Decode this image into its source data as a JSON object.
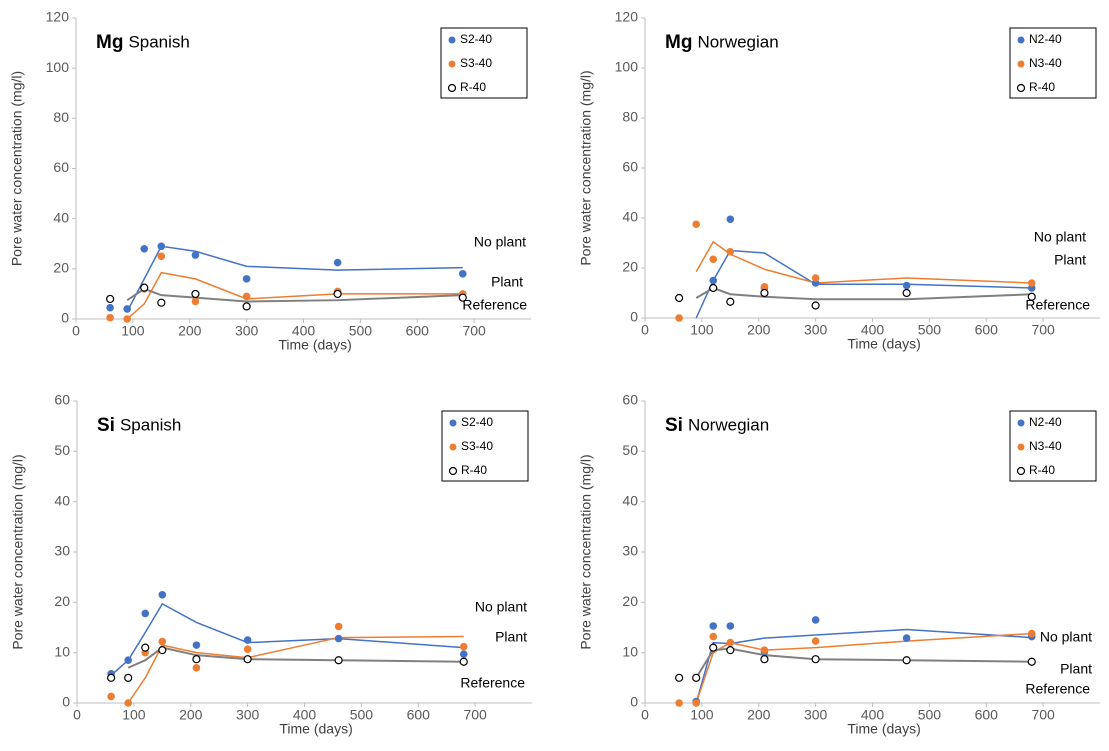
{
  "chart_data": [
    {
      "type": "scatter",
      "title_bold": "Mg",
      "title": "Spanish",
      "x_label": "Time (days)",
      "y_label": "Pore water concentration (mg/l)",
      "xlim": [
        0,
        800
      ],
      "xticks": [
        0,
        100,
        200,
        300,
        400,
        500,
        600,
        700
      ],
      "ylim": [
        0,
        120
      ],
      "yticks": [
        0,
        20,
        40,
        60,
        80,
        100,
        120
      ],
      "x": [
        60,
        90,
        120,
        150,
        210,
        300,
        460,
        680
      ],
      "series": [
        {
          "name": "S2-40",
          "color": "#4472c4",
          "marker": "filled",
          "values": [
            4.5,
            4,
            28,
            29,
            25.5,
            16,
            22.5,
            18
          ]
        },
        {
          "name": "S3-40",
          "color": "#ed7d31",
          "marker": "filled",
          "values": [
            0.5,
            0,
            12,
            25,
            7,
            9,
            11,
            10
          ]
        },
        {
          "name": "R-40",
          "color": "#000000",
          "marker": "open",
          "values": [
            8,
            null,
            12.5,
            6.5,
            10,
            5,
            10,
            8.5
          ]
        }
      ],
      "trend_x": [
        90,
        120,
        150,
        210,
        300,
        460,
        680
      ],
      "trend_lines": [
        {
          "label": "No plant",
          "color": "#4472c4",
          "values": [
            3,
            16,
            29,
            27,
            21,
            19.5,
            20.5
          ]
        },
        {
          "label": "Plant",
          "color": "#ed7d31",
          "values": [
            0,
            6,
            18.5,
            16,
            8,
            10,
            10
          ]
        },
        {
          "label": "Reference",
          "color": "#808080",
          "values": [
            7.5,
            12,
            9.5,
            8.5,
            7,
            7.5,
            9.5
          ]
        }
      ]
    },
    {
      "type": "scatter",
      "title_bold": "Mg",
      "title": "Norwegian",
      "x_label": "Time (days)",
      "y_label": "Pore water concentration (mg/l)",
      "xlim": [
        0,
        800
      ],
      "xticks": [
        0,
        100,
        200,
        300,
        400,
        500,
        600,
        700
      ],
      "ylim": [
        0,
        120
      ],
      "yticks": [
        0,
        20,
        40,
        60,
        80,
        100,
        120
      ],
      "x": [
        60,
        90,
        120,
        150,
        210,
        300,
        460,
        680
      ],
      "series": [
        {
          "name": "N2-40",
          "color": "#4472c4",
          "marker": "filled",
          "values": [
            null,
            null,
            15,
            39.5,
            12,
            14,
            13,
            12
          ]
        },
        {
          "name": "N3-40",
          "color": "#ed7d31",
          "marker": "filled",
          "values": [
            0,
            37.5,
            23.5,
            26.5,
            12.5,
            16,
            null,
            14
          ]
        },
        {
          "name": "R-40",
          "color": "#000000",
          "marker": "open",
          "values": [
            8,
            null,
            12,
            6.5,
            10,
            5,
            10,
            8.5
          ]
        }
      ],
      "trend_x": [
        90,
        120,
        150,
        210,
        300,
        460,
        680
      ],
      "trend_lines": [
        {
          "label": "No plant",
          "color": "#4472c4",
          "values": [
            0,
            15,
            27,
            26,
            13.5,
            13.5,
            12
          ]
        },
        {
          "label": "Plant",
          "color": "#ed7d31",
          "values": [
            18.5,
            30.5,
            25.5,
            19.5,
            14,
            16,
            14
          ]
        },
        {
          "label": "Reference",
          "color": "#808080",
          "values": [
            8,
            12,
            9.5,
            8.5,
            7.5,
            7.5,
            9.5
          ]
        }
      ]
    },
    {
      "type": "scatter",
      "title_bold": "Si",
      "title": "Spanish",
      "x_label": "Time (days)",
      "y_label": "Pore water concentration (mg/l)",
      "xlim": [
        0,
        800
      ],
      "xticks": [
        0,
        100,
        200,
        300,
        400,
        500,
        600,
        700
      ],
      "ylim": [
        0,
        60
      ],
      "yticks": [
        0,
        10,
        20,
        30,
        40,
        50,
        60
      ],
      "x": [
        60,
        90,
        120,
        150,
        210,
        300,
        460,
        680
      ],
      "series": [
        {
          "name": "S2-40",
          "color": "#4472c4",
          "marker": "filled",
          "values": [
            5.8,
            8.5,
            17.8,
            21.5,
            11.5,
            12.5,
            12.8,
            9.7
          ]
        },
        {
          "name": "S3-40",
          "color": "#ed7d31",
          "marker": "filled",
          "values": [
            1.3,
            0,
            10,
            12.2,
            7,
            10.7,
            15.2,
            11.2
          ]
        },
        {
          "name": "R-40",
          "color": "#000000",
          "marker": "open",
          "values": [
            5,
            5,
            11,
            10.5,
            8.7,
            8.7,
            8.5,
            8.2
          ]
        }
      ],
      "trend_x": [
        60,
        90,
        120,
        150,
        210,
        300,
        460,
        680
      ],
      "trend_lines": [
        {
          "label": "No plant",
          "color": "#4472c4",
          "values": [
            5.5,
            8.5,
            14,
            19.7,
            16,
            12,
            12.8,
            11
          ]
        },
        {
          "label": "Plant",
          "color": "#ed7d31",
          "values": [
            null,
            0,
            5,
            11.5,
            10,
            9,
            13,
            13.2
          ]
        },
        {
          "label": "Reference",
          "color": "#808080",
          "values": [
            null,
            7,
            8.5,
            11,
            9.5,
            8.7,
            8.5,
            8.2
          ]
        }
      ]
    },
    {
      "type": "scatter",
      "title_bold": "Si",
      "title": "Norwegian",
      "x_label": "Time (days)",
      "y_label": "Pore water concentration (mg/l)",
      "xlim": [
        0,
        800
      ],
      "xticks": [
        0,
        100,
        200,
        300,
        400,
        500,
        600,
        700
      ],
      "ylim": [
        0,
        60
      ],
      "yticks": [
        0,
        10,
        20,
        30,
        40,
        50,
        60
      ],
      "x": [
        60,
        90,
        120,
        150,
        210,
        300,
        460,
        680
      ],
      "series": [
        {
          "name": "N2-40",
          "color": "#4472c4",
          "marker": "filled",
          "values": [
            null,
            0.3,
            15.3,
            15.3,
            10.2,
            16.5,
            12.9,
            13.2
          ]
        },
        {
          "name": "N3-40",
          "color": "#ed7d31",
          "marker": "filled",
          "values": [
            0,
            0,
            13.2,
            12,
            10.5,
            12.3,
            null,
            13.8
          ]
        },
        {
          "name": "R-40",
          "color": "#000000",
          "marker": "open",
          "values": [
            5,
            5,
            11,
            10.5,
            8.7,
            8.7,
            8.5,
            8.2
          ]
        }
      ],
      "trend_x": [
        90,
        120,
        150,
        210,
        300,
        460,
        680
      ],
      "trend_lines": [
        {
          "label": "No plant",
          "color": "#4472c4",
          "values": [
            0,
            12,
            11.8,
            12.9,
            13.5,
            14.6,
            13
          ]
        },
        {
          "label": "Plant",
          "color": "#ed7d31",
          "values": [
            0,
            10,
            12,
            10.5,
            11,
            12.3,
            13.8
          ]
        },
        {
          "label": "Reference",
          "color": "#808080",
          "values": [
            5,
            10.5,
            10.8,
            9.5,
            8.7,
            8.5,
            8.2
          ]
        }
      ]
    }
  ]
}
